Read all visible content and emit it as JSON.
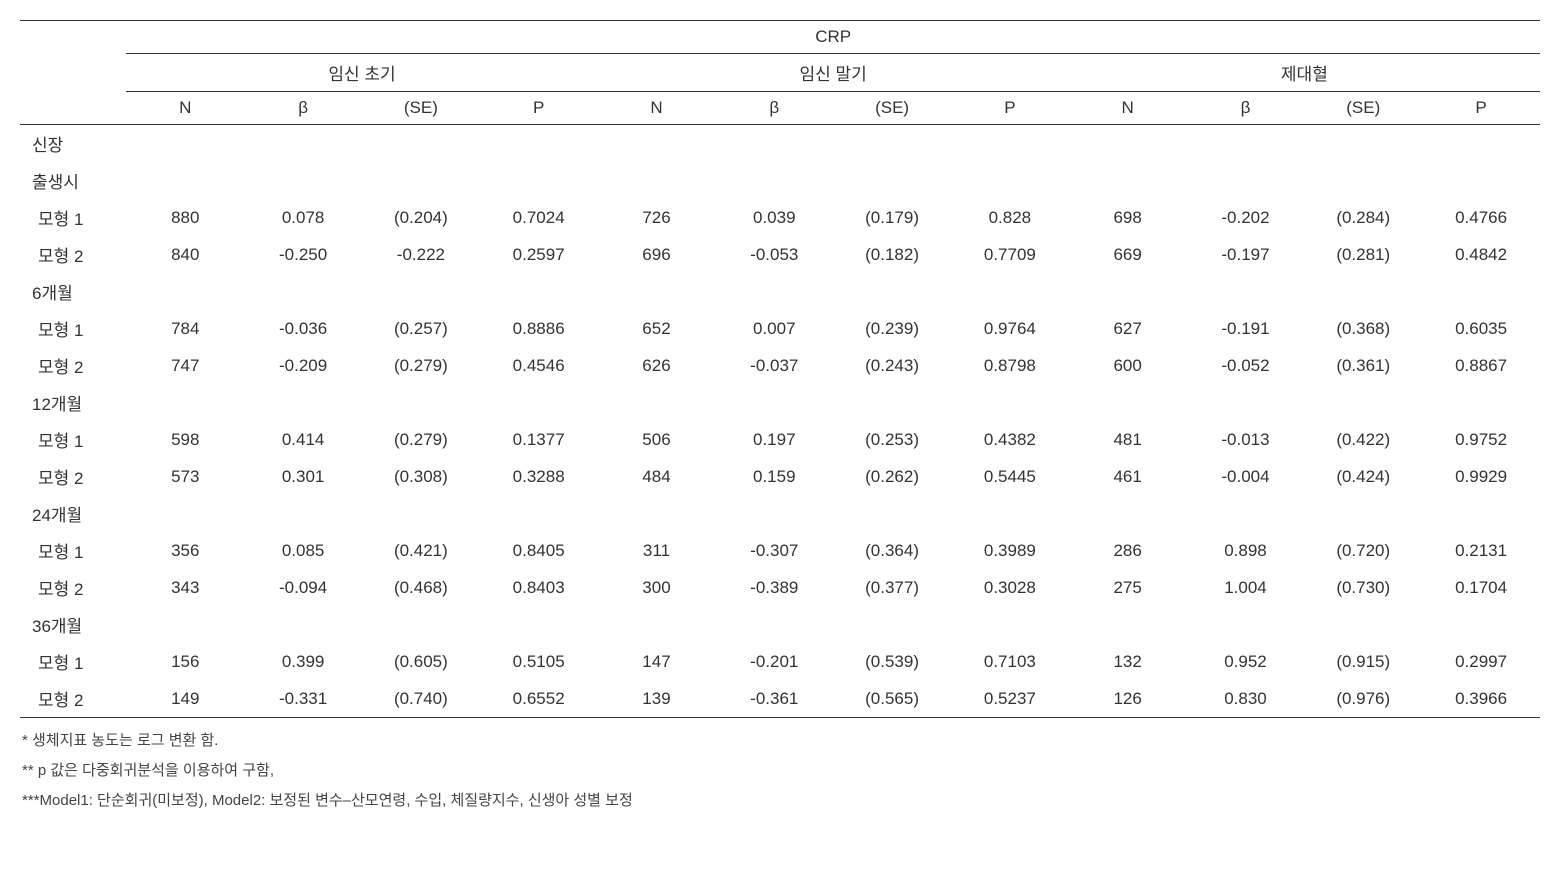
{
  "header": {
    "super": "CRP",
    "groups": [
      "임신 초기",
      "임신 말기",
      "제대혈"
    ],
    "cols": [
      "N",
      "β",
      "(SE)",
      "P"
    ]
  },
  "outcome_label": "신장",
  "sections": [
    {
      "label": "출생시",
      "rows": [
        {
          "label": "모형 1",
          "cells": [
            "880",
            "0.078",
            "(0.204)",
            "0.7024",
            "726",
            "0.039",
            "(0.179)",
            "0.828",
            "698",
            "-0.202",
            "(0.284)",
            "0.4766"
          ]
        },
        {
          "label": "모형 2",
          "cells": [
            "840",
            "-0.250",
            "-0.222",
            "0.2597",
            "696",
            "-0.053",
            "(0.182)",
            "0.7709",
            "669",
            "-0.197",
            "(0.281)",
            "0.4842"
          ]
        }
      ]
    },
    {
      "label": "6개월",
      "rows": [
        {
          "label": "모형 1",
          "cells": [
            "784",
            "-0.036",
            "(0.257)",
            "0.8886",
            "652",
            "0.007",
            "(0.239)",
            "0.9764",
            "627",
            "-0.191",
            "(0.368)",
            "0.6035"
          ]
        },
        {
          "label": "모형 2",
          "cells": [
            "747",
            "-0.209",
            "(0.279)",
            "0.4546",
            "626",
            "-0.037",
            "(0.243)",
            "0.8798",
            "600",
            "-0.052",
            "(0.361)",
            "0.8867"
          ]
        }
      ]
    },
    {
      "label": "12개월",
      "rows": [
        {
          "label": "모형 1",
          "cells": [
            "598",
            "0.414",
            "(0.279)",
            "0.1377",
            "506",
            "0.197",
            "(0.253)",
            "0.4382",
            "481",
            "-0.013",
            "(0.422)",
            "0.9752"
          ]
        },
        {
          "label": "모형 2",
          "cells": [
            "573",
            "0.301",
            "(0.308)",
            "0.3288",
            "484",
            "0.159",
            "(0.262)",
            "0.5445",
            "461",
            "-0.004",
            "(0.424)",
            "0.9929"
          ]
        }
      ]
    },
    {
      "label": "24개월",
      "rows": [
        {
          "label": "모형 1",
          "cells": [
            "356",
            "0.085",
            "(0.421)",
            "0.8405",
            "311",
            "-0.307",
            "(0.364)",
            "0.3989",
            "286",
            "0.898",
            "(0.720)",
            "0.2131"
          ]
        },
        {
          "label": "모형 2",
          "cells": [
            "343",
            "-0.094",
            "(0.468)",
            "0.8403",
            "300",
            "-0.389",
            "(0.377)",
            "0.3028",
            "275",
            "1.004",
            "(0.730)",
            "0.1704"
          ]
        }
      ]
    },
    {
      "label": "36개월",
      "rows": [
        {
          "label": "모형 1",
          "cells": [
            "156",
            "0.399",
            "(0.605)",
            "0.5105",
            "147",
            "-0.201",
            "(0.539)",
            "0.7103",
            "132",
            "0.952",
            "(0.915)",
            "0.2997"
          ]
        },
        {
          "label": "모형 2",
          "cells": [
            "149",
            "-0.331",
            "(0.740)",
            "0.6552",
            "139",
            "-0.361",
            "(0.565)",
            "0.5237",
            "126",
            "0.830",
            "(0.976)",
            "0.3966"
          ]
        }
      ]
    }
  ],
  "footnotes": [
    "* 생체지표 농도는 로그 변환 함.",
    "** p 값은 다중회귀분석을 이용하여 구함,",
    "***Model1: 단순회귀(미보정), Model2: 보정된 변수–산모연령, 수입, 체질량지수, 신생아 성별 보정"
  ],
  "style": {
    "type": "table",
    "font_size_pt": 17,
    "footnote_font_size_pt": 15,
    "background_color": "#ffffff",
    "text_color": "#333333",
    "border_color": "#333333",
    "col_widths_percent": [
      7,
      7.75,
      7.75,
      7.75,
      7.75,
      7.75,
      7.75,
      7.75,
      7.75,
      7.75,
      7.75,
      7.75,
      7.75
    ],
    "n_groups": 3,
    "cols_per_group": 4
  }
}
